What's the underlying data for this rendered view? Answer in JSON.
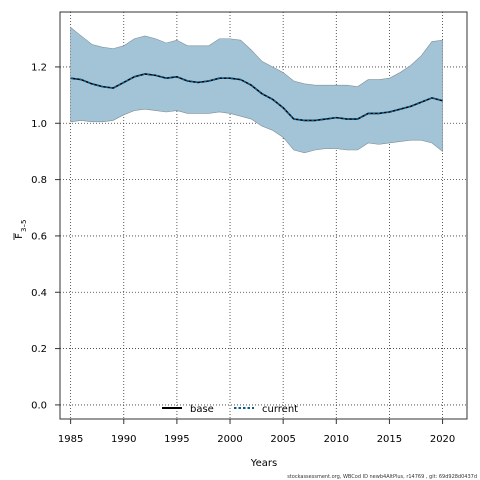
{
  "chart_data": {
    "type": "area",
    "title": "",
    "xlabel": "Years",
    "ylabel_main": "F",
    "ylabel_sub": "3–5",
    "xlim": [
      1984,
      2022.3
    ],
    "ylim": [
      -0.05,
      1.395
    ],
    "x_ticks": [
      1985,
      1990,
      1995,
      2000,
      2005,
      2010,
      2015,
      2020
    ],
    "y_ticks": [
      0.0,
      0.2,
      0.4,
      0.6,
      0.8,
      1.0,
      1.2
    ],
    "x_tick_labels": [
      "1985",
      "1990",
      "1995",
      "2000",
      "2005",
      "2010",
      "2015",
      "2020"
    ],
    "y_tick_labels": [
      "0.0",
      "0.2",
      "0.4",
      "0.6",
      "0.8",
      "1.0",
      "1.2"
    ],
    "grid": true,
    "legend_position": "bottom-left",
    "colors": {
      "band_fill": "#a3c4d6",
      "band_stroke": "#7f8f99",
      "base_line": "#000000",
      "current_line": "#0a5a8c",
      "grid": "#333333"
    },
    "x": [
      1985,
      1986,
      1987,
      1988,
      1989,
      1990,
      1991,
      1992,
      1993,
      1994,
      1995,
      1996,
      1997,
      1998,
      1999,
      2000,
      2001,
      2002,
      2003,
      2004,
      2005,
      2006,
      2007,
      2008,
      2009,
      2010,
      2011,
      2012,
      2013,
      2014,
      2015,
      2016,
      2017,
      2018,
      2019,
      2020
    ],
    "band_upper": [
      1.34,
      1.31,
      1.28,
      1.27,
      1.265,
      1.275,
      1.3,
      1.31,
      1.3,
      1.285,
      1.295,
      1.275,
      1.275,
      1.275,
      1.3,
      1.3,
      1.295,
      1.26,
      1.22,
      1.2,
      1.18,
      1.15,
      1.14,
      1.135,
      1.135,
      1.135,
      1.135,
      1.13,
      1.155,
      1.155,
      1.16,
      1.18,
      1.205,
      1.24,
      1.29,
      1.295
    ],
    "band_lower": [
      1.005,
      1.01,
      1.005,
      1.005,
      1.01,
      1.03,
      1.045,
      1.05,
      1.045,
      1.04,
      1.045,
      1.035,
      1.035,
      1.035,
      1.04,
      1.035,
      1.025,
      1.015,
      0.99,
      0.975,
      0.95,
      0.905,
      0.895,
      0.905,
      0.91,
      0.91,
      0.905,
      0.905,
      0.93,
      0.925,
      0.93,
      0.935,
      0.94,
      0.94,
      0.93,
      0.9
    ],
    "series": [
      {
        "name": "base",
        "values": [
          1.16,
          1.155,
          1.14,
          1.13,
          1.125,
          1.145,
          1.165,
          1.175,
          1.17,
          1.16,
          1.165,
          1.15,
          1.145,
          1.15,
          1.16,
          1.16,
          1.155,
          1.135,
          1.105,
          1.085,
          1.055,
          1.015,
          1.01,
          1.01,
          1.015,
          1.02,
          1.015,
          1.015,
          1.035,
          1.035,
          1.04,
          1.05,
          1.06,
          1.075,
          1.09,
          1.08
        ]
      },
      {
        "name": "current",
        "values": [
          1.16,
          1.155,
          1.14,
          1.13,
          1.125,
          1.145,
          1.165,
          1.175,
          1.17,
          1.16,
          1.165,
          1.15,
          1.145,
          1.15,
          1.16,
          1.16,
          1.155,
          1.135,
          1.105,
          1.085,
          1.055,
          1.015,
          1.01,
          1.01,
          1.015,
          1.02,
          1.015,
          1.015,
          1.035,
          1.035,
          1.04,
          1.05,
          1.06,
          1.075,
          1.09,
          1.08
        ]
      }
    ],
    "legend": [
      {
        "label": "base",
        "style": "solid"
      },
      {
        "label": "current",
        "style": "dashed"
      }
    ]
  },
  "footer": {
    "caption": "stockassessment.org,  WBCod  ID  newb4AltPlus,  r14769 ,  git: 69d928d0437d"
  }
}
